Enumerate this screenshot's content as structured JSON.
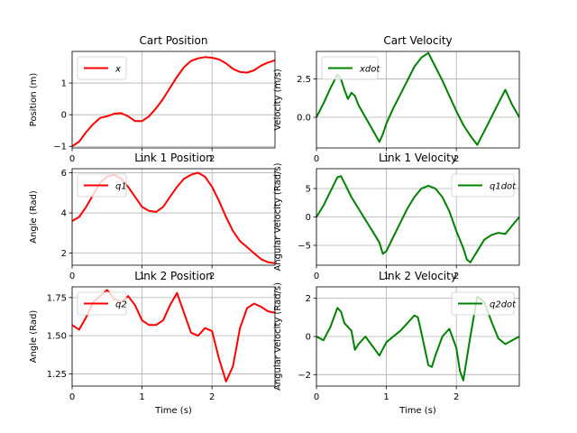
{
  "chart_data": [
    {
      "type": "line",
      "title": "Cart Position",
      "xlabel": "",
      "ylabel": "Position (m)",
      "xlim": [
        0,
        2.9
      ],
      "ylim": [
        -1.05,
        2.0
      ],
      "xticks": [
        0,
        1,
        2
      ],
      "yticks": [
        -1,
        0,
        1
      ],
      "grid": true,
      "legend": "upper left",
      "color": "#ff0000",
      "series": [
        {
          "name": "x",
          "x": [
            0,
            0.1,
            0.2,
            0.3,
            0.4,
            0.5,
            0.6,
            0.7,
            0.8,
            0.9,
            1.0,
            1.1,
            1.2,
            1.3,
            1.4,
            1.5,
            1.6,
            1.7,
            1.8,
            1.9,
            2.0,
            2.1,
            2.2,
            2.3,
            2.4,
            2.5,
            2.6,
            2.7,
            2.8,
            2.9
          ],
          "values": [
            -1.0,
            -0.85,
            -0.55,
            -0.3,
            -0.1,
            -0.05,
            0.03,
            0.05,
            -0.05,
            -0.2,
            -0.2,
            -0.05,
            0.2,
            0.5,
            0.85,
            1.2,
            1.5,
            1.7,
            1.78,
            1.82,
            1.8,
            1.75,
            1.62,
            1.45,
            1.35,
            1.33,
            1.4,
            1.55,
            1.65,
            1.72
          ]
        }
      ]
    },
    {
      "type": "line",
      "title": "Cart Velocity",
      "xlabel": "",
      "ylabel": "Velocity (m/s)",
      "xlim": [
        0,
        2.9
      ],
      "ylim": [
        -2.0,
        4.3
      ],
      "xticks": [
        0,
        1,
        2
      ],
      "yticks": [
        0.0,
        2.5
      ],
      "grid": true,
      "legend": "upper left",
      "color": "#008000",
      "series": [
        {
          "name": "xdot",
          "x": [
            0,
            0.1,
            0.2,
            0.3,
            0.35,
            0.4,
            0.45,
            0.5,
            0.55,
            0.6,
            0.7,
            0.8,
            0.9,
            0.95,
            1.0,
            1.1,
            1.2,
            1.3,
            1.4,
            1.5,
            1.6,
            1.7,
            1.8,
            1.9,
            2.0,
            2.1,
            2.2,
            2.3,
            2.4,
            2.5,
            2.6,
            2.7,
            2.8,
            2.9
          ],
          "values": [
            0.0,
            0.9,
            1.9,
            2.8,
            2.5,
            1.8,
            1.2,
            1.6,
            1.4,
            0.8,
            0.0,
            -0.8,
            -1.6,
            -1.1,
            -0.4,
            0.6,
            1.5,
            2.4,
            3.3,
            3.9,
            4.2,
            3.3,
            2.4,
            1.4,
            0.4,
            -0.5,
            -1.2,
            -1.8,
            -0.9,
            0.0,
            0.9,
            1.8,
            0.8,
            0.0
          ]
        }
      ]
    },
    {
      "type": "line",
      "title": "Link 1 Position",
      "xlabel": "",
      "ylabel": "Angle (Rad)",
      "xlim": [
        0,
        2.9
      ],
      "ylim": [
        1.4,
        6.2
      ],
      "xticks": [
        0,
        1,
        2
      ],
      "yticks": [
        2,
        4,
        6
      ],
      "grid": true,
      "legend": "upper left",
      "color": "#ff0000",
      "series": [
        {
          "name": "q1",
          "x": [
            0,
            0.1,
            0.2,
            0.3,
            0.4,
            0.5,
            0.6,
            0.7,
            0.8,
            0.9,
            1.0,
            1.1,
            1.2,
            1.3,
            1.4,
            1.5,
            1.6,
            1.7,
            1.8,
            1.9,
            2.0,
            2.1,
            2.2,
            2.3,
            2.4,
            2.5,
            2.6,
            2.7,
            2.8,
            2.9
          ],
          "values": [
            3.6,
            3.8,
            4.3,
            4.9,
            5.5,
            5.8,
            5.9,
            5.7,
            5.3,
            4.8,
            4.3,
            4.1,
            4.05,
            4.3,
            4.8,
            5.3,
            5.7,
            5.9,
            6.0,
            5.8,
            5.3,
            4.6,
            3.8,
            3.1,
            2.6,
            2.3,
            2.0,
            1.7,
            1.55,
            1.5
          ]
        }
      ]
    },
    {
      "type": "line",
      "title": "Link 1 Velocity",
      "xlabel": "",
      "ylabel": "Angular Velocity (Rad/s)",
      "xlim": [
        0,
        2.9
      ],
      "ylim": [
        -8.5,
        8.5
      ],
      "xticks": [
        0,
        1,
        2
      ],
      "yticks": [
        -5,
        0,
        5
      ],
      "grid": true,
      "legend": "upper right",
      "color": "#008000",
      "series": [
        {
          "name": "q1dot",
          "x": [
            0,
            0.1,
            0.2,
            0.3,
            0.35,
            0.4,
            0.5,
            0.6,
            0.7,
            0.8,
            0.9,
            0.95,
            1.0,
            1.1,
            1.2,
            1.3,
            1.4,
            1.5,
            1.6,
            1.7,
            1.8,
            1.9,
            2.0,
            2.1,
            2.15,
            2.2,
            2.3,
            2.4,
            2.5,
            2.6,
            2.7,
            2.8,
            2.9
          ],
          "values": [
            0.0,
            2.0,
            4.5,
            7.0,
            7.2,
            6.0,
            3.5,
            1.5,
            -0.5,
            -2.5,
            -4.5,
            -6.5,
            -6.0,
            -3.5,
            -1.0,
            1.5,
            3.5,
            5.0,
            5.5,
            5.0,
            3.5,
            1.0,
            -2.5,
            -5.5,
            -7.5,
            -8.0,
            -6.0,
            -4.0,
            -3.2,
            -2.8,
            -3.0,
            -1.5,
            0.0
          ]
        }
      ]
    },
    {
      "type": "line",
      "title": "Link 2 Position",
      "xlabel": "Time (s)",
      "ylabel": "Angle (Rad)",
      "xlim": [
        0,
        2.9
      ],
      "ylim": [
        1.17,
        1.82
      ],
      "xticks": [
        0,
        1,
        2
      ],
      "yticks": [
        1.25,
        1.5,
        1.75
      ],
      "grid": true,
      "legend": "upper left",
      "color": "#ff0000",
      "series": [
        {
          "name": "q2",
          "x": [
            0,
            0.1,
            0.2,
            0.3,
            0.4,
            0.5,
            0.6,
            0.7,
            0.8,
            0.9,
            1.0,
            1.1,
            1.2,
            1.3,
            1.4,
            1.5,
            1.6,
            1.7,
            1.8,
            1.9,
            2.0,
            2.1,
            2.2,
            2.3,
            2.4,
            2.5,
            2.6,
            2.7,
            2.8,
            2.9
          ],
          "values": [
            1.57,
            1.54,
            1.62,
            1.72,
            1.76,
            1.8,
            1.74,
            1.72,
            1.76,
            1.7,
            1.6,
            1.57,
            1.57,
            1.6,
            1.7,
            1.78,
            1.65,
            1.52,
            1.5,
            1.55,
            1.53,
            1.35,
            1.2,
            1.3,
            1.55,
            1.68,
            1.71,
            1.69,
            1.66,
            1.65
          ]
        }
      ]
    },
    {
      "type": "line",
      "title": "Link 2 Velocity",
      "xlabel": "Time (s)",
      "ylabel": "Angular Velocity (Rad/s)",
      "xlim": [
        0,
        2.9
      ],
      "ylim": [
        -2.6,
        2.6
      ],
      "xticks": [
        0,
        1,
        2
      ],
      "yticks": [
        -2,
        0,
        2
      ],
      "grid": true,
      "legend": "upper right",
      "color": "#008000",
      "series": [
        {
          "name": "q2dot",
          "x": [
            0,
            0.1,
            0.2,
            0.3,
            0.35,
            0.4,
            0.5,
            0.55,
            0.6,
            0.7,
            0.8,
            0.9,
            1.0,
            1.1,
            1.2,
            1.3,
            1.4,
            1.45,
            1.5,
            1.6,
            1.65,
            1.7,
            1.8,
            1.9,
            2.0,
            2.05,
            2.1,
            2.2,
            2.3,
            2.4,
            2.5,
            2.6,
            2.7,
            2.8,
            2.9
          ],
          "values": [
            0.0,
            -0.2,
            0.5,
            1.5,
            1.3,
            0.7,
            0.3,
            -0.7,
            -0.4,
            0.0,
            -0.5,
            -1.0,
            -0.3,
            0.0,
            0.3,
            0.7,
            1.1,
            1.0,
            0.2,
            -1.5,
            -1.6,
            -1.0,
            0.0,
            0.4,
            -0.6,
            -1.8,
            -2.3,
            0.0,
            2.1,
            1.8,
            0.8,
            -0.1,
            -0.4,
            -0.2,
            0.0
          ]
        }
      ]
    }
  ]
}
